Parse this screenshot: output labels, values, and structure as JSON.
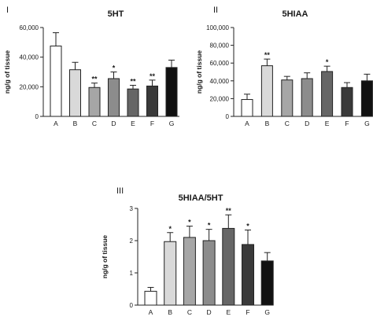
{
  "chart_data": [
    {
      "type": "bar",
      "panel": "I",
      "title": "5HT",
      "ylabel": "ng/g of tissue",
      "xlabel": "",
      "categories": [
        "A",
        "B",
        "C",
        "D",
        "E",
        "F",
        "G"
      ],
      "values": [
        47500,
        31500,
        19500,
        25500,
        18500,
        20500,
        33000
      ],
      "errors": [
        9000,
        5000,
        3000,
        4500,
        2500,
        4000,
        5000
      ],
      "significance": [
        "",
        "",
        "**",
        "*",
        "**",
        "**",
        ""
      ],
      "ylim": [
        0,
        60000
      ],
      "yticks": [
        "0",
        "20,000",
        "40,000",
        "60,000"
      ],
      "ytick_values": [
        0,
        20000,
        40000,
        60000
      ],
      "bar_colors": [
        "#ffffff",
        "#d9d9d9",
        "#a6a6a6",
        "#8c8c8c",
        "#666666",
        "#3a3a3a",
        "#111111"
      ],
      "grid": false
    },
    {
      "type": "bar",
      "panel": "II",
      "title": "5HIAA",
      "ylabel": "ng/g of tissue",
      "xlabel": "",
      "categories": [
        "A",
        "B",
        "C",
        "D",
        "E",
        "F",
        "G"
      ],
      "values": [
        19000,
        57000,
        41000,
        42500,
        50500,
        32500,
        40000
      ],
      "errors": [
        6000,
        7500,
        4000,
        6500,
        6000,
        5500,
        7500
      ],
      "significance": [
        "",
        "**",
        "",
        "",
        "*",
        "",
        ""
      ],
      "ylim": [
        0,
        100000
      ],
      "yticks": [
        "0",
        "20,000",
        "40,000",
        "60,000",
        "80,000",
        "100,000"
      ],
      "ytick_values": [
        0,
        20000,
        40000,
        60000,
        80000,
        100000
      ],
      "bar_colors": [
        "#ffffff",
        "#d9d9d9",
        "#a6a6a6",
        "#8c8c8c",
        "#666666",
        "#3a3a3a",
        "#111111"
      ],
      "grid": false
    },
    {
      "type": "bar",
      "panel": "III",
      "title": "5HIAA/5HT",
      "ylabel": "ng/g of tissue",
      "xlabel": "",
      "categories": [
        "A",
        "B",
        "C",
        "D",
        "E",
        "F",
        "G"
      ],
      "values": [
        0.43,
        1.97,
        2.1,
        2.0,
        2.38,
        1.88,
        1.37
      ],
      "errors": [
        0.12,
        0.28,
        0.35,
        0.35,
        0.42,
        0.45,
        0.26
      ],
      "significance": [
        "",
        "*",
        "*",
        "*",
        "**",
        "*",
        ""
      ],
      "ylim": [
        0,
        3
      ],
      "yticks": [
        "0",
        "1",
        "2",
        "3"
      ],
      "ytick_values": [
        0,
        1,
        2,
        3
      ],
      "bar_colors": [
        "#ffffff",
        "#d9d9d9",
        "#a6a6a6",
        "#8c8c8c",
        "#666666",
        "#3a3a3a",
        "#111111"
      ],
      "grid": false
    }
  ]
}
